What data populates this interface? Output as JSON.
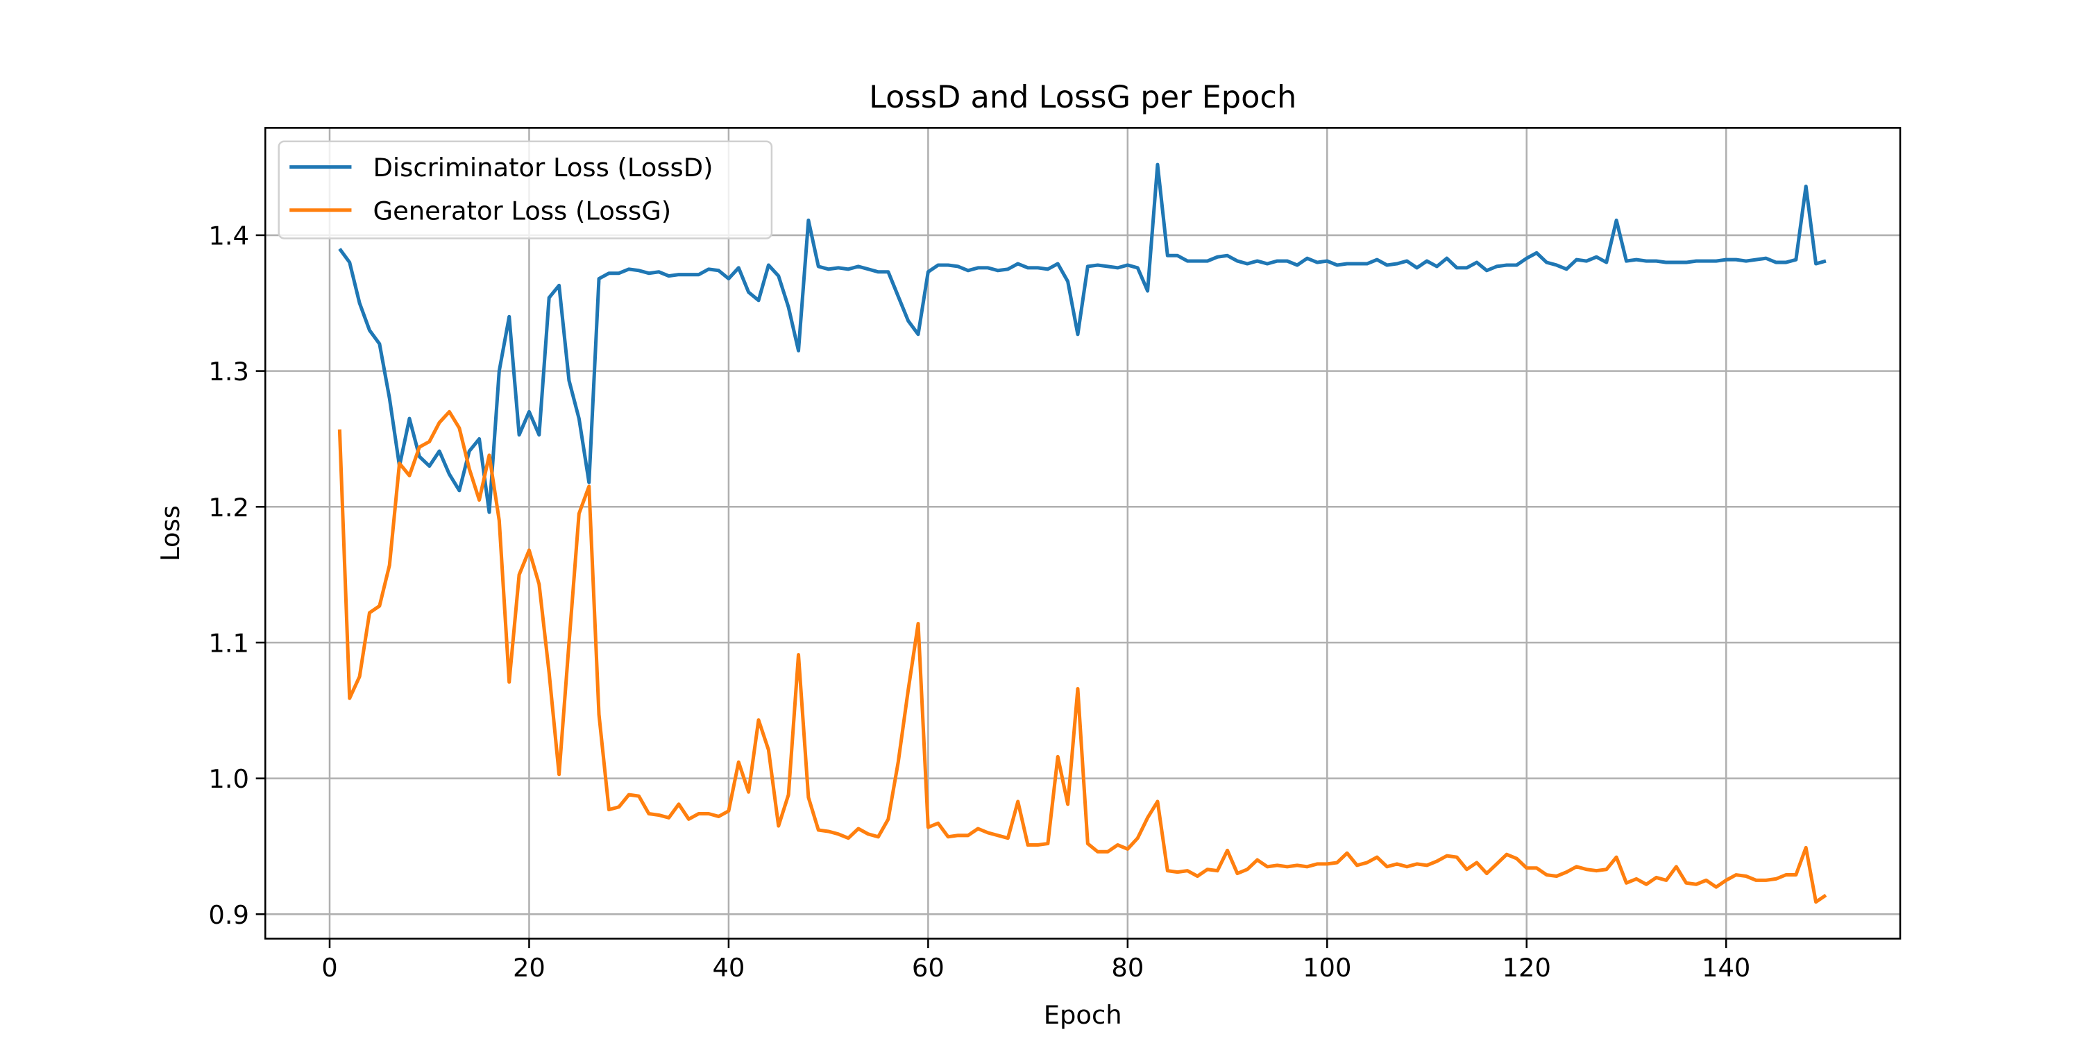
{
  "chart_data": {
    "type": "line",
    "title": "LossD and LossG per Epoch",
    "xlabel": "Epoch",
    "ylabel": "Loss",
    "xlim": [
      -6.45,
      157.45
    ],
    "ylim": [
      0.882,
      1.479
    ],
    "xticks": [
      0,
      20,
      40,
      60,
      80,
      100,
      120,
      140
    ],
    "yticks": [
      0.9,
      {
        "value": 1.0,
        "label": "1.0"
      },
      1.1,
      1.2,
      1.3,
      1.4
    ],
    "grid": true,
    "legend": "upper left",
    "x": [
      1,
      2,
      3,
      4,
      5,
      6,
      7,
      8,
      9,
      10,
      11,
      12,
      13,
      14,
      15,
      16,
      17,
      18,
      19,
      20,
      21,
      22,
      23,
      24,
      25,
      26,
      27,
      28,
      29,
      30,
      31,
      32,
      33,
      34,
      35,
      36,
      37,
      38,
      39,
      40,
      41,
      42,
      43,
      44,
      45,
      46,
      47,
      48,
      49,
      50,
      51,
      52,
      53,
      54,
      55,
      56,
      57,
      58,
      59,
      60,
      61,
      62,
      63,
      64,
      65,
      66,
      67,
      68,
      69,
      70,
      71,
      72,
      73,
      74,
      75,
      76,
      77,
      78,
      79,
      80,
      81,
      82,
      83,
      84,
      85,
      86,
      87,
      88,
      89,
      90,
      91,
      92,
      93,
      94,
      95,
      96,
      97,
      98,
      99,
      100,
      101,
      102,
      103,
      104,
      105,
      106,
      107,
      108,
      109,
      110,
      111,
      112,
      113,
      114,
      115,
      116,
      117,
      118,
      119,
      120,
      121,
      122,
      123,
      124,
      125,
      126,
      127,
      128,
      129,
      130,
      131,
      132,
      133,
      134,
      135,
      136,
      137,
      138,
      139,
      140,
      141,
      142,
      143,
      144,
      145,
      146,
      147,
      148,
      149,
      150
    ],
    "series": [
      {
        "name": "Discriminator Loss (LossD)",
        "color": "#1f77b4",
        "values": [
          1.39,
          1.38,
          1.35,
          1.33,
          1.32,
          1.28,
          1.23,
          1.265,
          1.237,
          1.23,
          1.241,
          1.224,
          1.212,
          1.241,
          1.25,
          1.196,
          1.3,
          1.34,
          1.253,
          1.27,
          1.253,
          1.354,
          1.363,
          1.293,
          1.265,
          1.218,
          1.368,
          1.372,
          1.372,
          1.375,
          1.374,
          1.372,
          1.373,
          1.37,
          1.371,
          1.371,
          1.371,
          1.375,
          1.374,
          1.368,
          1.376,
          1.358,
          1.352,
          1.378,
          1.37,
          1.347,
          1.315,
          1.411,
          1.377,
          1.375,
          1.376,
          1.375,
          1.377,
          1.375,
          1.373,
          1.373,
          1.355,
          1.337,
          1.327,
          1.373,
          1.378,
          1.378,
          1.377,
          1.374,
          1.376,
          1.376,
          1.374,
          1.375,
          1.379,
          1.376,
          1.376,
          1.375,
          1.379,
          1.366,
          1.327,
          1.377,
          1.378,
          1.377,
          1.376,
          1.378,
          1.376,
          1.359,
          1.452,
          1.385,
          1.385,
          1.381,
          1.381,
          1.381,
          1.384,
          1.385,
          1.381,
          1.379,
          1.381,
          1.379,
          1.381,
          1.381,
          1.378,
          1.383,
          1.38,
          1.381,
          1.378,
          1.379,
          1.379,
          1.379,
          1.382,
          1.378,
          1.379,
          1.381,
          1.376,
          1.381,
          1.377,
          1.383,
          1.376,
          1.376,
          1.38,
          1.374,
          1.377,
          1.378,
          1.378,
          1.383,
          1.387,
          1.38,
          1.378,
          1.375,
          1.382,
          1.381,
          1.384,
          1.38,
          1.411,
          1.381,
          1.382,
          1.381,
          1.381,
          1.38,
          1.38,
          1.38,
          1.381,
          1.381,
          1.381,
          1.382,
          1.382,
          1.381,
          1.382,
          1.383,
          1.38,
          1.38,
          1.382,
          1.436,
          1.379,
          1.381
        ]
      },
      {
        "name": "Generator Loss (LossG)",
        "color": "#ff7f0e",
        "values": [
          1.257,
          1.059,
          1.075,
          1.122,
          1.127,
          1.157,
          1.232,
          1.223,
          1.244,
          1.248,
          1.262,
          1.27,
          1.258,
          1.228,
          1.205,
          1.238,
          1.19,
          1.071,
          1.15,
          1.168,
          1.143,
          1.078,
          1.003,
          1.1,
          1.195,
          1.215,
          1.047,
          0.977,
          0.979,
          0.988,
          0.987,
          0.974,
          0.973,
          0.971,
          0.981,
          0.97,
          0.974,
          0.974,
          0.972,
          0.976,
          1.012,
          0.99,
          1.043,
          1.021,
          0.965,
          0.988,
          1.091,
          0.986,
          0.962,
          0.961,
          0.959,
          0.956,
          0.963,
          0.959,
          0.957,
          0.97,
          1.012,
          1.065,
          1.114,
          0.964,
          0.967,
          0.957,
          0.958,
          0.958,
          0.963,
          0.96,
          0.958,
          0.956,
          0.983,
          0.951,
          0.951,
          0.952,
          1.016,
          0.981,
          1.066,
          0.952,
          0.946,
          0.946,
          0.951,
          0.948,
          0.956,
          0.971,
          0.983,
          0.932,
          0.931,
          0.932,
          0.928,
          0.933,
          0.932,
          0.947,
          0.93,
          0.933,
          0.94,
          0.935,
          0.936,
          0.935,
          0.936,
          0.935,
          0.937,
          0.937,
          0.938,
          0.945,
          0.936,
          0.938,
          0.942,
          0.935,
          0.937,
          0.935,
          0.937,
          0.936,
          0.939,
          0.943,
          0.942,
          0.933,
          0.938,
          0.93,
          0.937,
          0.944,
          0.941,
          0.934,
          0.934,
          0.929,
          0.928,
          0.931,
          0.935,
          0.933,
          0.932,
          0.933,
          0.942,
          0.923,
          0.926,
          0.922,
          0.927,
          0.925,
          0.935,
          0.923,
          0.922,
          0.925,
          0.92,
          0.925,
          0.929,
          0.928,
          0.925,
          0.925,
          0.926,
          0.929,
          0.929,
          0.949,
          0.909,
          0.914
        ]
      }
    ]
  }
}
